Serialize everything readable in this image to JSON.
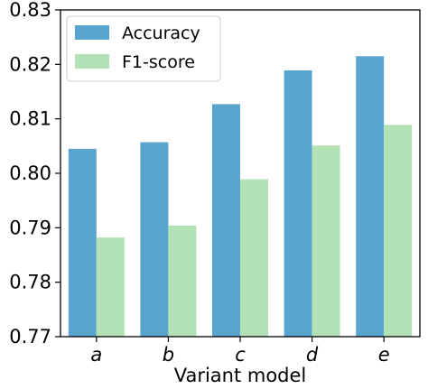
{
  "chart_data": {
    "type": "bar",
    "categories": [
      "a",
      "b",
      "c",
      "d",
      "e"
    ],
    "series": [
      {
        "name": "Accuracy",
        "color": "#5aa5d0",
        "values": [
          0.8045,
          0.8057,
          0.8127,
          0.8189,
          0.8215
        ]
      },
      {
        "name": "F1-score",
        "color": "#b3e2b6",
        "values": [
          0.7882,
          0.7904,
          0.7989,
          0.8051,
          0.8089
        ]
      }
    ],
    "xlabel": "Variant model",
    "ylabel": "",
    "ylim": [
      0.77,
      0.83
    ],
    "yticks": [
      "0.77",
      "0.78",
      "0.79",
      "0.80",
      "0.81",
      "0.82",
      "0.83"
    ],
    "grid": false,
    "legend_position": "top-left"
  }
}
